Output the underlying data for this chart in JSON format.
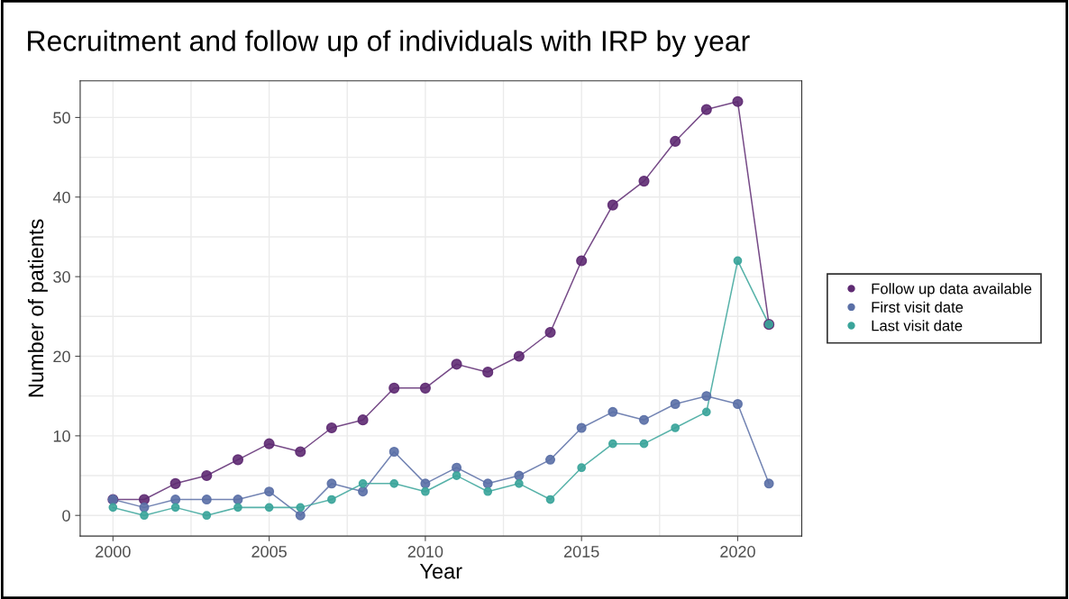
{
  "chart_data": {
    "type": "line",
    "title": "Recruitment and follow up of individuals with IRP by year",
    "xlabel": "Year",
    "ylabel": "Number of patients",
    "x": [
      2000,
      2001,
      2002,
      2003,
      2004,
      2005,
      2006,
      2007,
      2008,
      2009,
      2010,
      2011,
      2012,
      2013,
      2014,
      2015,
      2016,
      2017,
      2018,
      2019,
      2020,
      2021
    ],
    "series": [
      {
        "name": "Follow up data available",
        "color": "#5e2a72",
        "values": [
          2,
          2,
          4,
          5,
          7,
          9,
          8,
          11,
          12,
          16,
          16,
          19,
          18,
          20,
          23,
          32,
          39,
          42,
          47,
          51,
          52,
          24
        ]
      },
      {
        "name": "First visit date",
        "color": "#5a6fa6",
        "values": [
          2,
          1,
          2,
          2,
          2,
          3,
          0,
          4,
          3,
          8,
          4,
          6,
          4,
          5,
          7,
          11,
          13,
          12,
          14,
          15,
          14,
          4
        ]
      },
      {
        "name": "Last visit date",
        "color": "#3aa49a",
        "values": [
          1,
          0,
          1,
          0,
          1,
          1,
          1,
          2,
          4,
          4,
          3,
          5,
          3,
          4,
          2,
          6,
          9,
          9,
          11,
          13,
          32,
          24
        ]
      }
    ],
    "xlim": [
      1998.95,
      2022.05
    ],
    "ylim": [
      -2.6,
      54.6
    ],
    "xticks": [
      2000,
      2005,
      2010,
      2015,
      2020
    ],
    "yticks": [
      0,
      10,
      20,
      30,
      40,
      50
    ],
    "grid": true,
    "legend": "right",
    "marker": "circle",
    "line_style": "solid"
  }
}
